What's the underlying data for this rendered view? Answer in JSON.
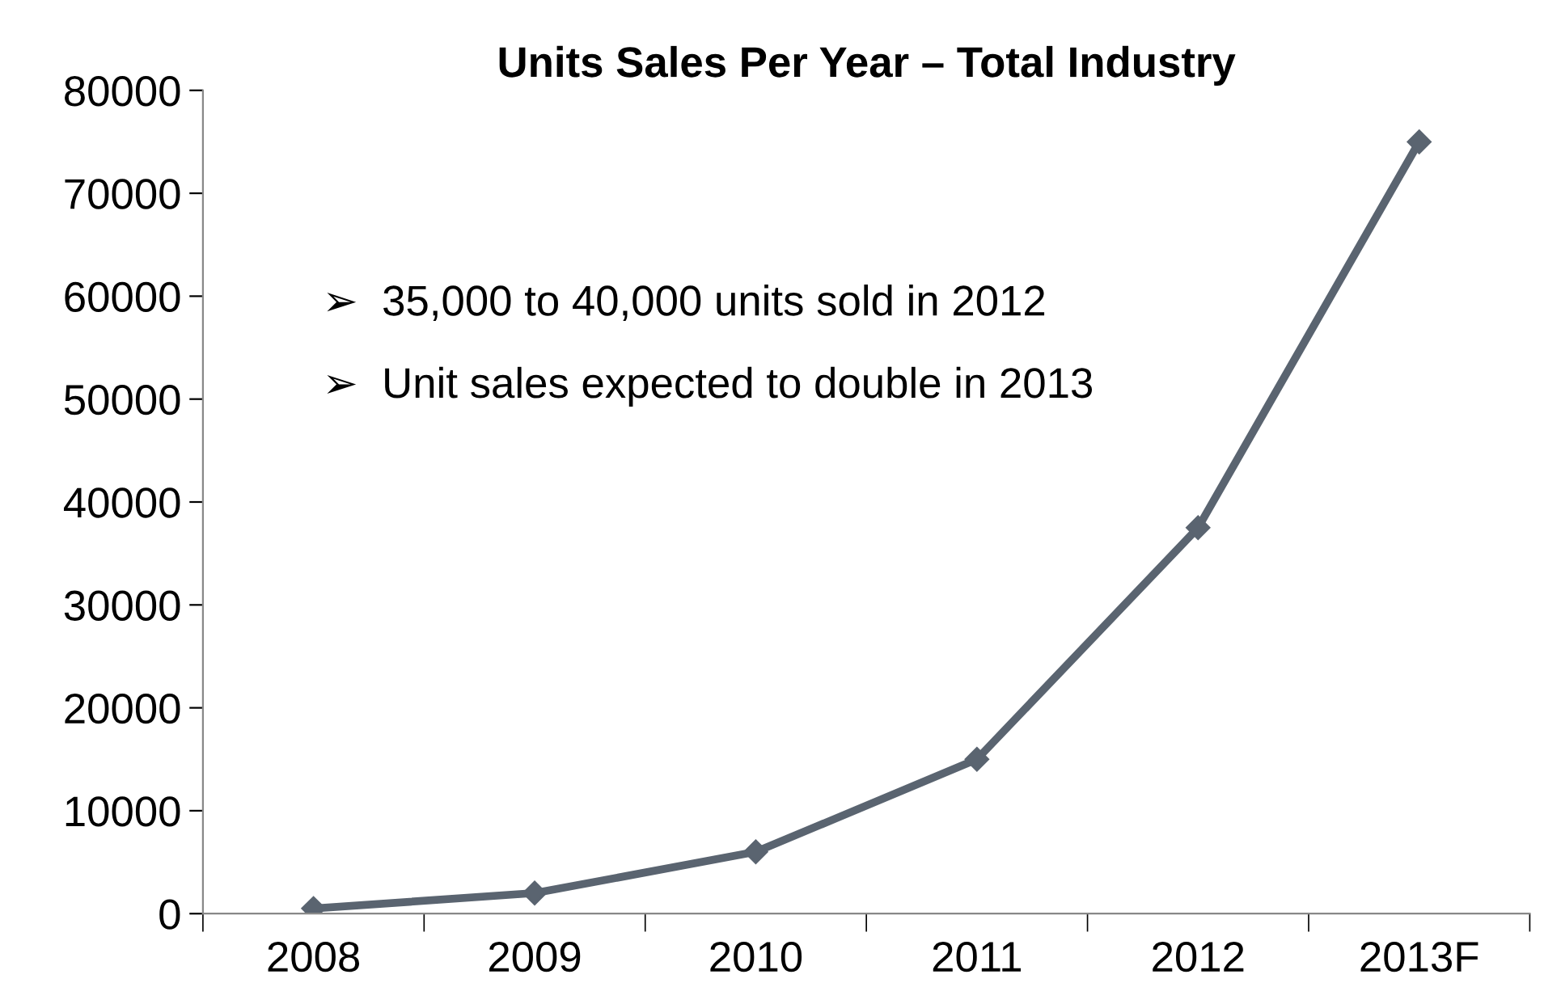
{
  "chart_data": {
    "type": "line",
    "title": "Units Sales Per Year – Total Industry",
    "categories": [
      "2008",
      "2009",
      "2010",
      "2011",
      "2012",
      "2013F"
    ],
    "series": [
      {
        "color": "#5a6470",
        "values": [
          500,
          2000,
          6000,
          15000,
          37500,
          75000
        ]
      }
    ],
    "ylim": [
      0,
      80000
    ],
    "yticks": [
      0,
      10000,
      20000,
      30000,
      40000,
      50000,
      60000,
      70000,
      80000
    ],
    "marker": "diamond",
    "line_style": "solid",
    "annotations": [
      "➢  35,000 to 40,000 units sold in 2012",
      "➢  Unit sales expected to double in 2013"
    ]
  }
}
